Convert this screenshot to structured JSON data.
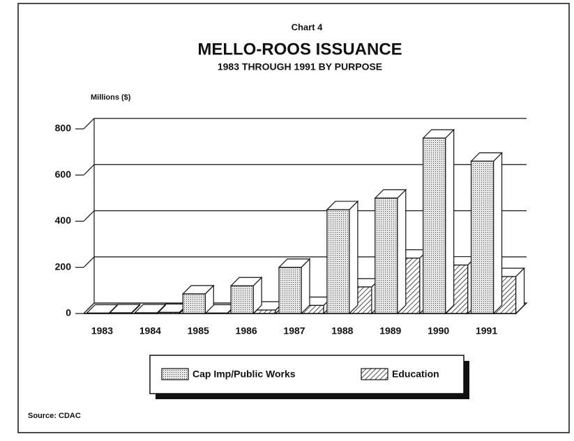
{
  "chart_data": {
    "type": "bar3d",
    "label": "Chart 4",
    "title": "MELLO-ROOS ISSUANCE",
    "subtitle": "1983 THROUGH 1991 BY PURPOSE",
    "y_label": "Millions ($)",
    "source": "Source: CDAC",
    "categories": [
      "1983",
      "1984",
      "1985",
      "1986",
      "1987",
      "1988",
      "1989",
      "1990",
      "1991"
    ],
    "series": [
      {
        "name": "Cap Imp/Public Works",
        "color": "#d0d0d0",
        "values": [
          2,
          3,
          85,
          120,
          200,
          450,
          500,
          760,
          660
        ]
      },
      {
        "name": "Education",
        "color": "#777777",
        "values": [
          3,
          5,
          2,
          15,
          35,
          115,
          240,
          210,
          160
        ]
      }
    ],
    "ylim": [
      0,
      800
    ],
    "yticks": [
      0,
      200,
      400,
      600,
      800
    ],
    "grid": true
  }
}
